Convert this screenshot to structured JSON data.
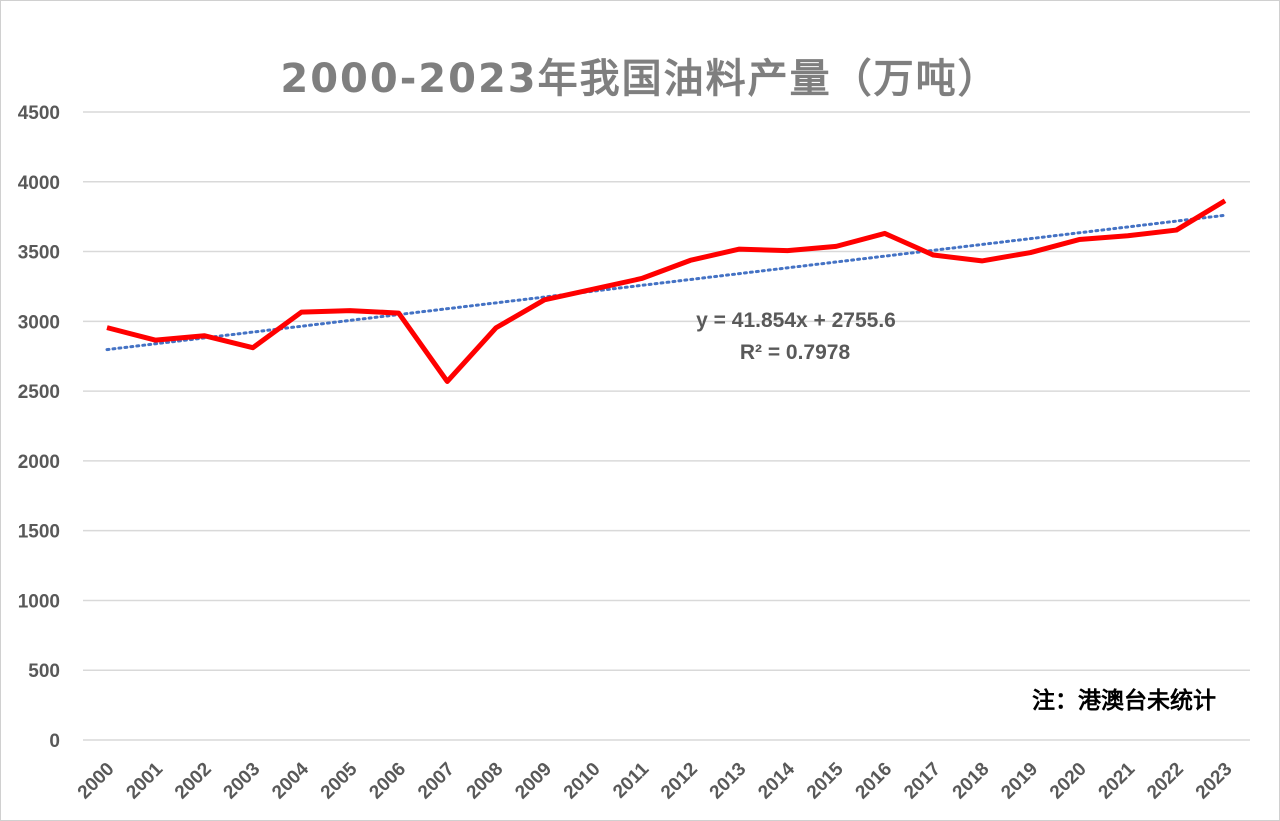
{
  "chart_data": {
    "type": "line",
    "title": "2000-2023年我国油料产量（万吨）",
    "x": [
      "2000",
      "2001",
      "2002",
      "2003",
      "2004",
      "2005",
      "2006",
      "2007",
      "2008",
      "2009",
      "2010",
      "2011",
      "2012",
      "2013",
      "2014",
      "2015",
      "2016",
      "2017",
      "2018",
      "2019",
      "2020",
      "2021",
      "2022",
      "2023"
    ],
    "series": [
      {
        "values": [
          2955,
          2865,
          2897,
          2811,
          3066,
          3077,
          3059,
          2569,
          2953,
          3154,
          3230,
          3307,
          3437,
          3517,
          3507,
          3537,
          3630,
          3475,
          3433,
          3493,
          3586,
          3613,
          3654,
          3864
        ],
        "color": "#ff0000"
      }
    ],
    "trendline": {
      "type": "linear",
      "slope": 41.854,
      "intercept": 2755.6,
      "equation": "y = 41.854x + 2755.6",
      "r2": "R² = 0.7978",
      "color": "#4472c4",
      "style": "dotted"
    },
    "ylim": [
      0,
      4500
    ],
    "yticks": [
      0,
      500,
      1000,
      1500,
      2000,
      2500,
      3000,
      3500,
      4000,
      4500
    ],
    "grid": true,
    "legend": "none",
    "note": "注：港澳台未统计"
  }
}
